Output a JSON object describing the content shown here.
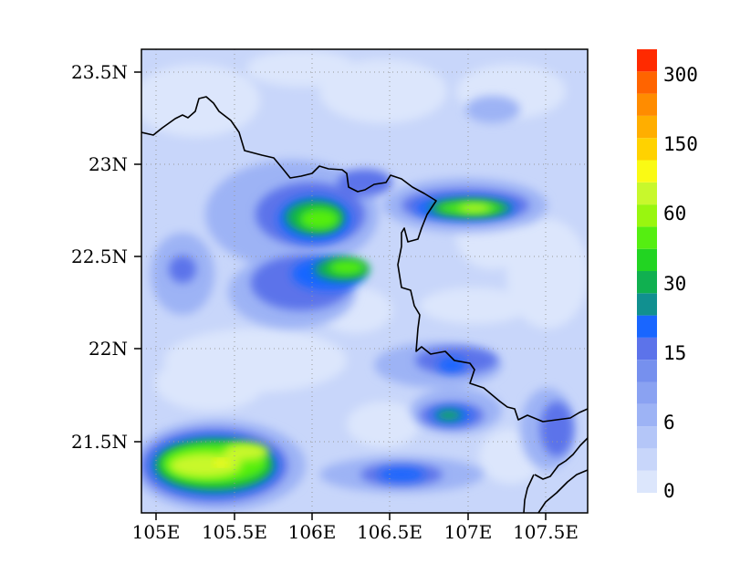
{
  "map": {
    "x_ticks": [
      {
        "lon": 105.0,
        "label": "105E"
      },
      {
        "lon": 105.5,
        "label": "105.5E"
      },
      {
        "lon": 106.0,
        "label": "106E"
      },
      {
        "lon": 106.5,
        "label": "106.5E"
      },
      {
        "lon": 107.0,
        "label": "107E"
      },
      {
        "lon": 107.5,
        "label": "107.5E"
      }
    ],
    "y_ticks": [
      {
        "lat": 23.5,
        "label": "23.5N"
      },
      {
        "lat": 23.0,
        "label": "23N"
      },
      {
        "lat": 22.5,
        "label": "22.5N"
      },
      {
        "lat": 22.0,
        "label": "22N"
      },
      {
        "lat": 21.5,
        "label": "21.5N"
      }
    ],
    "lon_range": [
      104.95,
      107.8
    ],
    "lat_range": [
      21.1,
      23.6
    ],
    "grid": "dotted",
    "border_color": "#000000",
    "background_level": "2-4"
  },
  "colorbar": {
    "levels": [
      {
        "range": "0-2",
        "color": "#dce6fc"
      },
      {
        "range": "2-4",
        "color": "#c8d6fa"
      },
      {
        "range": "4-6",
        "color": "#b4c6f8"
      },
      {
        "range": "6-8",
        "color": "#9db3f5"
      },
      {
        "range": "8-10",
        "color": "#8aa2f2"
      },
      {
        "range": "10-12",
        "color": "#7690ee"
      },
      {
        "range": "12-15",
        "color": "#5c73ea"
      },
      {
        "range": "15-20",
        "color": "#1966ff"
      },
      {
        "range": "20-25",
        "color": "#119090"
      },
      {
        "range": "25-30",
        "color": "#10b050"
      },
      {
        "range": "30-40",
        "color": "#22d422"
      },
      {
        "range": "40-50",
        "color": "#55ee11"
      },
      {
        "range": "50-60",
        "color": "#99f60f"
      },
      {
        "range": "60-80",
        "color": "#c8f82c"
      },
      {
        "range": "80-100",
        "color": "#fafa14"
      },
      {
        "range": "100-150",
        "color": "#ffd200"
      },
      {
        "range": "150-200",
        "color": "#ffae00"
      },
      {
        "range": "200-250",
        "color": "#ff8c00"
      },
      {
        "range": "250-300",
        "color": "#ff6400"
      },
      {
        "range": ">300",
        "color": "#ff2a00"
      }
    ],
    "labels": [
      "0",
      "6",
      "15",
      "30",
      "60",
      "150",
      "300"
    ]
  }
}
